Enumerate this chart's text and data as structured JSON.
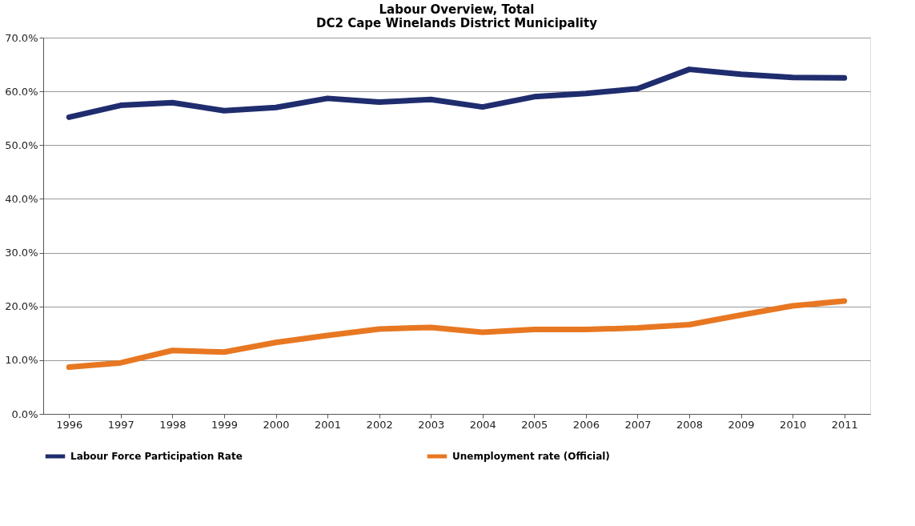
{
  "chart_data": {
    "type": "line",
    "title": [
      "Labour Overview, Total",
      "DC2 Cape Winelands District Municipality"
    ],
    "categories": [
      "1996",
      "1997",
      "1998",
      "1999",
      "2000",
      "2001",
      "2002",
      "2003",
      "2004",
      "2005",
      "2006",
      "2007",
      "2008",
      "2009",
      "2010",
      "2011"
    ],
    "series": [
      {
        "name": "Labour Force Participation Rate",
        "color": "#1f2d6e",
        "values": [
          55.2,
          57.4,
          57.9,
          56.4,
          57.0,
          58.7,
          58.0,
          58.5,
          57.1,
          59.0,
          59.6,
          60.5,
          64.1,
          63.2,
          62.6,
          62.5
        ]
      },
      {
        "name": "Unemployment rate (Official)",
        "color": "#e87722",
        "values": [
          8.7,
          9.5,
          11.8,
          11.5,
          13.3,
          14.6,
          15.8,
          16.1,
          15.2,
          15.7,
          15.7,
          16.0,
          16.6,
          18.4,
          20.1,
          21.0
        ]
      }
    ],
    "ylim": [
      0,
      70
    ],
    "yticks": [
      {
        "value": 0,
        "label": "0.0%"
      },
      {
        "value": 10,
        "label": "10.0%"
      },
      {
        "value": 20,
        "label": "20.0%"
      },
      {
        "value": 30,
        "label": "30.0%"
      },
      {
        "value": 40,
        "label": "40.0%"
      },
      {
        "value": 50,
        "label": "50.0%"
      },
      {
        "value": 60,
        "label": "60.0%"
      },
      {
        "value": 70,
        "label": "70.0%"
      }
    ],
    "grid": "y",
    "legend": "bottom",
    "marker": "none",
    "line_style": "solid"
  }
}
